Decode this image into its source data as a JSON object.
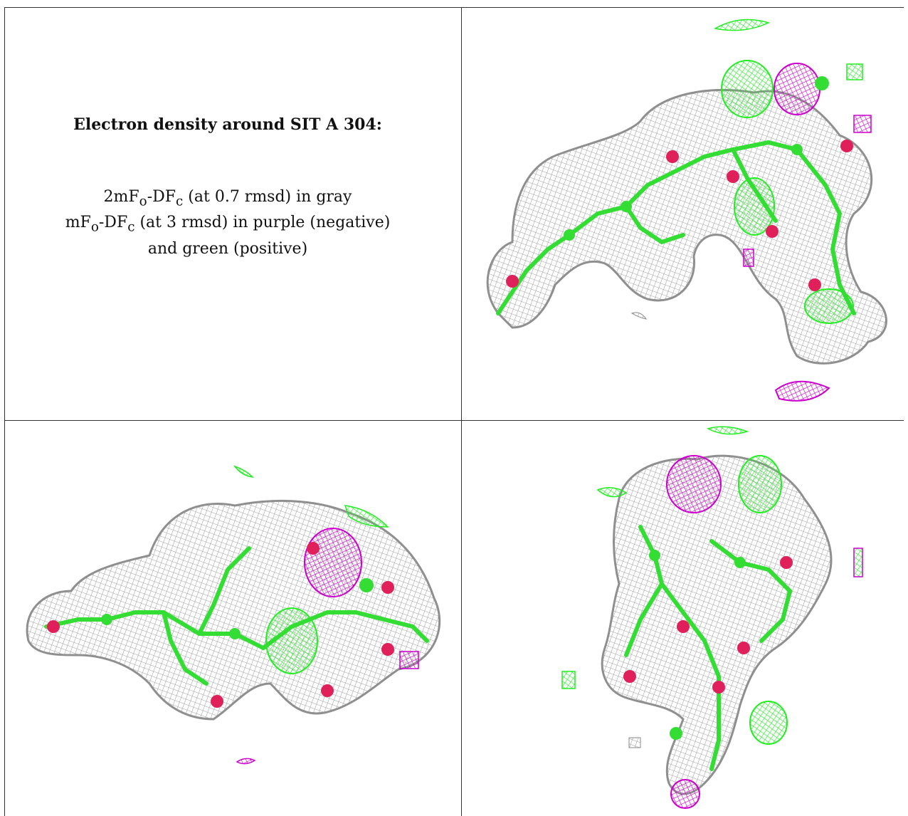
{
  "caption": {
    "title": "Electron density around SIT A 304:",
    "line1": "2mF<sub>o</sub>-DF<sub>c</sub> (at 0.7 rmsd) in gray",
    "line1_parts": [
      "2mF",
      "o",
      "-DF",
      "c",
      " (at 0.7 rmsd) in gray"
    ],
    "line2_parts": [
      "mF",
      "o",
      "-DF",
      "c",
      " (at 3 rmsd) in purple (negative)"
    ],
    "line3": "and green (positive)"
  },
  "colors": {
    "mesh_gray": "#a8a8a8",
    "negative_purple": "#cc00cc",
    "positive_green": "#22ee22",
    "oxygen_red": "#e0205a",
    "carbon_green": "#33dd33"
  },
  "panels": [
    {
      "name": "view-top-right",
      "description": "density view 1"
    },
    {
      "name": "view-bottom-left",
      "description": "density view 2"
    },
    {
      "name": "view-bottom-right",
      "description": "density view 3"
    }
  ]
}
